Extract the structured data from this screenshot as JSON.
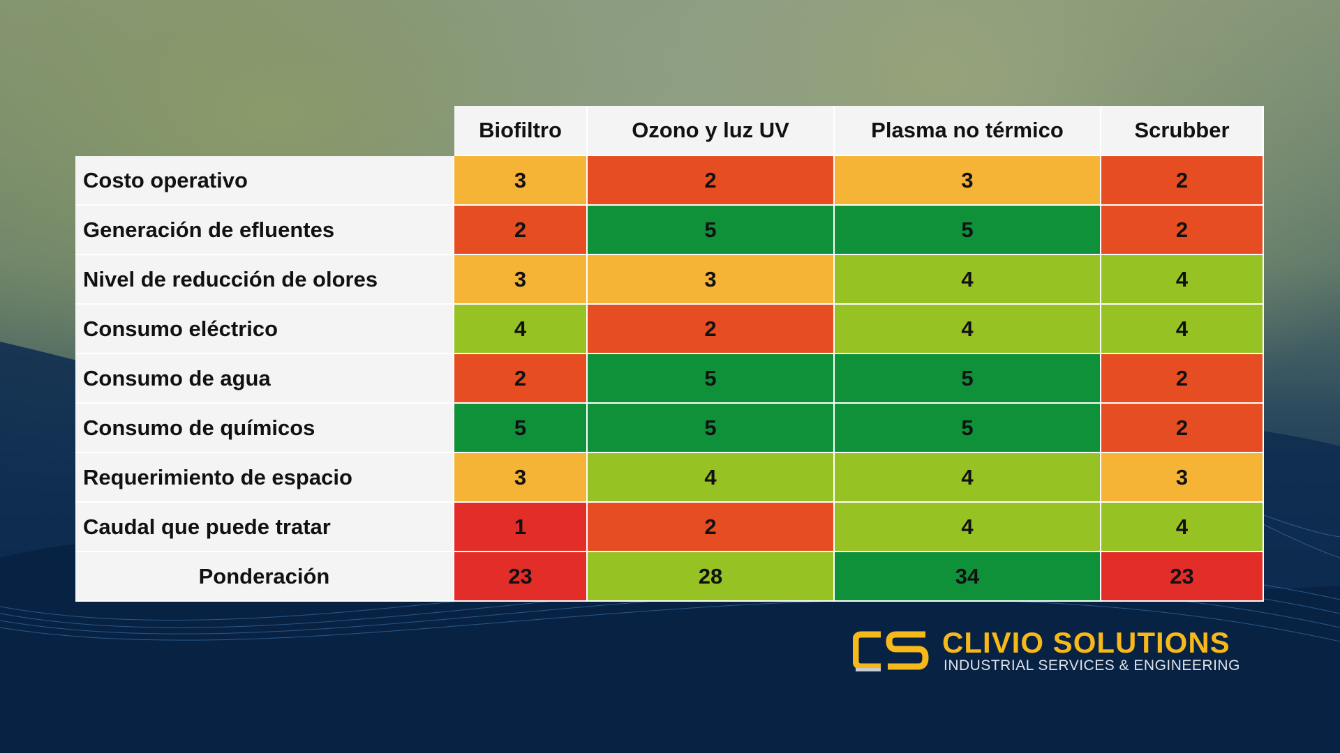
{
  "table": {
    "columns": [
      "Biofiltro",
      "Ozono y luz UV",
      "Plasma no térmico",
      "Scrubber"
    ],
    "rows": [
      {
        "label": "Costo operativo",
        "values": [
          3,
          2,
          3,
          2
        ],
        "colors": [
          "#f5b435",
          "#e64d22",
          "#f5b435",
          "#e64d22"
        ]
      },
      {
        "label": "Generación de efluentes",
        "values": [
          2,
          5,
          5,
          2
        ],
        "colors": [
          "#e64d22",
          "#0f913a",
          "#0f913a",
          "#e64d22"
        ]
      },
      {
        "label": "Nivel de reducción de olores",
        "values": [
          3,
          3,
          4,
          4
        ],
        "colors": [
          "#f5b435",
          "#f5b435",
          "#97c223",
          "#97c223"
        ]
      },
      {
        "label": "Consumo eléctrico",
        "values": [
          4,
          2,
          4,
          4
        ],
        "colors": [
          "#97c223",
          "#e64d22",
          "#97c223",
          "#97c223"
        ]
      },
      {
        "label": "Consumo de agua",
        "values": [
          2,
          5,
          5,
          2
        ],
        "colors": [
          "#e64d22",
          "#0f913a",
          "#0f913a",
          "#e64d22"
        ]
      },
      {
        "label": "Consumo de químicos",
        "values": [
          5,
          5,
          5,
          2
        ],
        "colors": [
          "#0f913a",
          "#0f913a",
          "#0f913a",
          "#e64d22"
        ]
      },
      {
        "label": "Requerimiento de espacio",
        "values": [
          3,
          4,
          4,
          3
        ],
        "colors": [
          "#f5b435",
          "#97c223",
          "#97c223",
          "#f5b435"
        ]
      },
      {
        "label": "Caudal que puede tratar",
        "values": [
          1,
          2,
          4,
          4
        ],
        "colors": [
          "#e22d28",
          "#e64d22",
          "#97c223",
          "#97c223"
        ]
      },
      {
        "label": "Ponderación",
        "values": [
          23,
          28,
          34,
          23
        ],
        "colors": [
          "#e22d28",
          "#97c223",
          "#0f913a",
          "#e22d28"
        ]
      }
    ]
  },
  "logo": {
    "name": "CLIVIO SOLUTIONS",
    "tagline": "INDUSTRIAL SERVICES & ENGINEERING"
  }
}
